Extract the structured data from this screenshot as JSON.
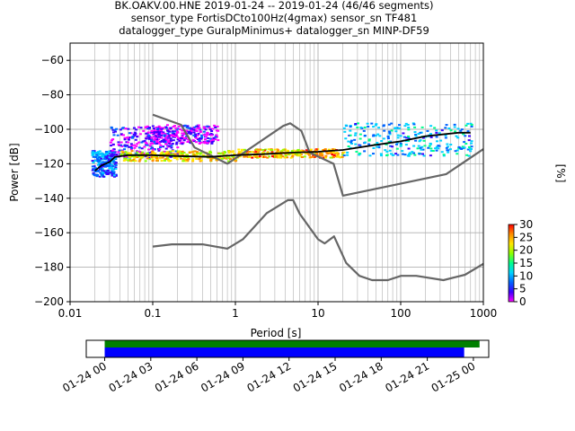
{
  "title_lines": [
    "BK.OAKV.00.HNE   2019-01-24 -- 2019-01-24  (46/46 segments)",
    "sensor_type FortisDCto100Hz(4gmax) sensor_sn TF481",
    "datalogger_type GuralpMinimus+ datalogger_sn MINP-DF59"
  ],
  "chart_data": [
    {
      "type": "heatmap",
      "xlabel": "Period [s]",
      "ylabel": "Power [dB]",
      "xscale": "log",
      "xlim": [
        0.01,
        1000
      ],
      "ylim": [
        -200,
        -50
      ],
      "x_tick_labels": [
        "0.01",
        "0.1",
        "1",
        "10",
        "100",
        "1000"
      ],
      "x_tick_values": [
        0.01,
        0.1,
        1,
        10,
        100,
        1000
      ],
      "y_tick_values": [
        -60,
        -80,
        -100,
        -120,
        -140,
        -160,
        -180,
        -200
      ],
      "y_tick_labels": [
        "−60",
        "−80",
        "−100",
        "−120",
        "−140",
        "−160",
        "−180",
        "−200"
      ],
      "grid": true,
      "colorbar": {
        "label": "[%]",
        "min": 0,
        "max": 30,
        "ticks": [
          "0",
          "5",
          "10",
          "15",
          "20",
          "25",
          "30"
        ],
        "colormap": [
          "#ff00ff",
          "#3c00ff",
          "#0064ff",
          "#00d2ff",
          "#00ff8c",
          "#8cff00",
          "#ffe600",
          "#ff8c00",
          "#ff0000"
        ]
      },
      "noise_model_color": "#666666",
      "high_noise_model": [
        [
          0.1,
          -91.5
        ],
        [
          0.22,
          -97.4
        ],
        [
          0.32,
          -110.5
        ],
        [
          0.8,
          -120
        ],
        [
          3.8,
          -98
        ],
        [
          4.6,
          -96.5
        ],
        [
          6.3,
          -101
        ],
        [
          7.9,
          -113.5
        ],
        [
          15.4,
          -120
        ],
        [
          20,
          -138.5
        ],
        [
          354.8,
          -126
        ],
        [
          1000,
          -111.5
        ]
      ],
      "low_noise_model": [
        [
          0.1,
          -168
        ],
        [
          0.17,
          -166.7
        ],
        [
          0.4,
          -166.7
        ],
        [
          0.8,
          -169.2
        ],
        [
          1.24,
          -163.7
        ],
        [
          2.4,
          -148.6
        ],
        [
          4.3,
          -141.1
        ],
        [
          5,
          -141.1
        ],
        [
          6,
          -149
        ],
        [
          10,
          -163.8
        ],
        [
          12,
          -166.2
        ],
        [
          15.6,
          -162.1
        ],
        [
          21.9,
          -177.5
        ],
        [
          31.6,
          -185
        ],
        [
          45,
          -187.5
        ],
        [
          70,
          -187.5
        ],
        [
          101,
          -185
        ],
        [
          154,
          -185
        ],
        [
          328,
          -187.5
        ],
        [
          600,
          -184.4
        ],
        [
          1000,
          -178
        ]
      ],
      "median_psd": [
        [
          0.02,
          -124
        ],
        [
          0.024,
          -121
        ],
        [
          0.03,
          -119
        ],
        [
          0.035,
          -116
        ],
        [
          0.05,
          -115
        ],
        [
          0.1,
          -115
        ],
        [
          0.2,
          -115.5
        ],
        [
          0.5,
          -116
        ],
        [
          1,
          -115
        ],
        [
          2,
          -114.5
        ],
        [
          5,
          -113.5
        ],
        [
          10,
          -113
        ],
        [
          20,
          -112
        ],
        [
          50,
          -109
        ],
        [
          100,
          -107
        ],
        [
          200,
          -104
        ],
        [
          500,
          -102
        ],
        [
          700,
          -102
        ]
      ],
      "density_clusters": [
        {
          "period_range": [
            0.018,
            0.035
          ],
          "db_range": [
            -127,
            -112
          ],
          "percent": 8
        },
        {
          "period_range": [
            0.03,
            0.2
          ],
          "db_range": [
            -116,
            -98
          ],
          "percent": 3
        },
        {
          "period_range": [
            0.08,
            0.6
          ],
          "db_range": [
            -108,
            -97
          ],
          "percent": 2
        },
        {
          "period_range": [
            0.04,
            1
          ],
          "db_range": [
            -118,
            -112
          ],
          "percent": 22
        },
        {
          "period_range": [
            1,
            20
          ],
          "db_range": [
            -116,
            -111
          ],
          "percent": 24
        },
        {
          "period_range": [
            20,
            700
          ],
          "db_range": [
            -115,
            -96
          ],
          "percent": 10
        }
      ]
    },
    {
      "type": "bar",
      "xlabel": "",
      "ylabel": "",
      "x_tick_labels": [
        "01-24 00",
        "01-24 03",
        "01-24 06",
        "01-24 09",
        "01-24 12",
        "01-24 15",
        "01-24 18",
        "01-24 21",
        "01-25 00"
      ],
      "x_tick_hours": [
        0,
        3,
        6,
        9,
        12,
        15,
        18,
        21,
        24
      ],
      "xlim_hours": [
        -1.2,
        25
      ],
      "series": [
        {
          "start_hour": 0,
          "end_hour": 24.4,
          "color": "#008000"
        },
        {
          "start_hour": 0,
          "end_hour": 23.4,
          "color": "#0000ff"
        }
      ]
    }
  ]
}
